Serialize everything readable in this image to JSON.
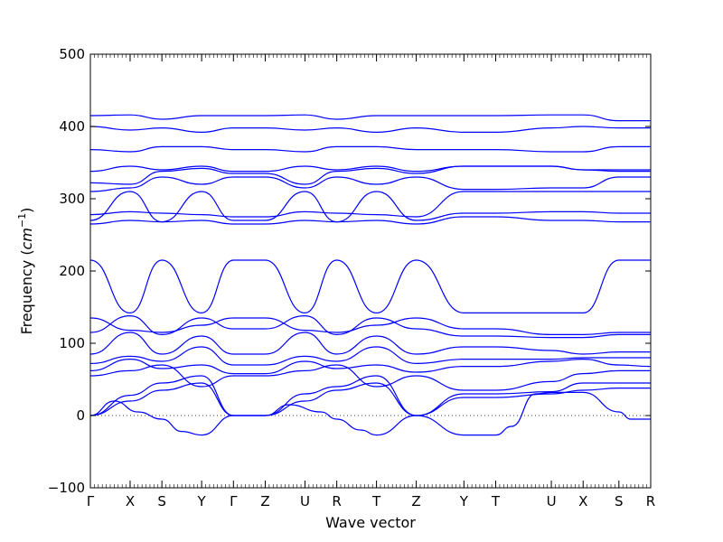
{
  "chart_data": {
    "type": "line",
    "title": "",
    "xlabel": "Wave vector",
    "ylabel_text": "Frequency (",
    "ylabel_unit": "cm",
    "ylabel_exp": "−1",
    "ylabel_close": ")",
    "ylim": [
      -100,
      500
    ],
    "yticks": [
      -100,
      0,
      100,
      200,
      300,
      400,
      500
    ],
    "x_positions": [
      0,
      1,
      1.8,
      2.8,
      3.6,
      4.4,
      5.4,
      6.2,
      7.2,
      8.2,
      9.4,
      10.2,
      11.6,
      12.4,
      13.3,
      14.1
    ],
    "x_tick_labels": [
      "Γ",
      "X",
      "S",
      "Y",
      "Γ",
      "Z",
      "U",
      "R",
      "T",
      "Z",
      "Y",
      "T",
      "U",
      "X",
      "S",
      "R"
    ],
    "series_color": "#0000ff",
    "bands": [
      {
        "x": [
          0,
          1,
          1.8,
          2.8,
          3.6,
          4.4,
          5.4,
          6.2,
          7.2,
          8.2,
          9.4,
          10.2,
          11.6,
          12.4,
          13.3,
          14.1
        ],
        "y": [
          0,
          20,
          35,
          45,
          0,
          0,
          20,
          35,
          45,
          0,
          25,
          25,
          30,
          35,
          38,
          38
        ]
      },
      {
        "x": [
          0,
          1,
          1.8,
          2.8,
          3.6,
          4.4,
          5.4,
          6.2,
          7.2,
          8.2,
          9.4,
          10.2,
          11.6,
          12.4,
          13.3,
          14.1
        ],
        "y": [
          0,
          28,
          45,
          55,
          0,
          0,
          30,
          40,
          55,
          0,
          30,
          30,
          33,
          45,
          45,
          45
        ]
      },
      {
        "x": [
          0,
          0.6,
          1.2,
          1.8,
          2.3,
          2.8,
          3.6,
          4.4,
          5.0,
          5.8,
          6.2,
          6.8,
          7.2,
          8.2,
          9.4,
          10.2,
          10.6,
          11.2,
          11.6,
          12.4,
          13.3,
          13.6,
          14.1
        ],
        "y": [
          0,
          20,
          5,
          -5,
          -22,
          -27,
          0,
          0,
          15,
          5,
          -5,
          -20,
          -27,
          0,
          -27,
          -27,
          -15,
          30,
          32,
          32,
          5,
          -5,
          -5
        ]
      },
      {
        "x": [
          0,
          1,
          1.8,
          2.8,
          3.6,
          4.4,
          5.4,
          6.2,
          7.2,
          8.2,
          9.4,
          10.2,
          11.6,
          12.4,
          13.3,
          14.1
        ],
        "y": [
          55,
          62,
          70,
          40,
          55,
          55,
          62,
          70,
          40,
          55,
          35,
          35,
          47,
          58,
          62,
          62
        ]
      },
      {
        "x": [
          0,
          1,
          1.8,
          2.8,
          3.6,
          4.4,
          5.4,
          6.2,
          7.2,
          8.2,
          9.4,
          10.2,
          11.6,
          12.4,
          13.3,
          14.1
        ],
        "y": [
          62,
          78,
          65,
          70,
          58,
          58,
          75,
          65,
          70,
          60,
          68,
          68,
          75,
          78,
          70,
          68
        ]
      },
      {
        "x": [
          0,
          1,
          1.8,
          2.8,
          3.6,
          4.4,
          5.4,
          6.2,
          7.2,
          8.2,
          9.4,
          10.2,
          11.6,
          12.4,
          13.3,
          14.1
        ],
        "y": [
          72,
          82,
          75,
          95,
          70,
          70,
          82,
          75,
          95,
          72,
          78,
          78,
          78,
          80,
          80,
          80
        ]
      },
      {
        "x": [
          0,
          1,
          1.8,
          2.8,
          3.6,
          4.4,
          5.4,
          6.2,
          7.2,
          8.2,
          9.4,
          10.2,
          11.6,
          12.4,
          13.3,
          14.1
        ],
        "y": [
          85,
          115,
          85,
          110,
          85,
          85,
          115,
          85,
          110,
          85,
          95,
          95,
          90,
          85,
          88,
          88
        ]
      },
      {
        "x": [
          0,
          1,
          1.8,
          2.8,
          3.6,
          4.4,
          5.4,
          6.2,
          7.2,
          8.2,
          9.4,
          10.2,
          11.6,
          12.4,
          13.3,
          14.1
        ],
        "y": [
          115,
          138,
          112,
          135,
          120,
          120,
          138,
          112,
          135,
          120,
          110,
          110,
          108,
          108,
          112,
          112
        ]
      },
      {
        "x": [
          0,
          1,
          1.8,
          2.8,
          3.6,
          4.4,
          5.4,
          6.2,
          7.2,
          8.2,
          9.4,
          10.2,
          11.6,
          12.4,
          13.3,
          14.1
        ],
        "y": [
          135,
          118,
          115,
          125,
          135,
          135,
          118,
          115,
          125,
          135,
          120,
          120,
          112,
          112,
          115,
          115
        ]
      },
      {
        "x": [
          0,
          1,
          1.8,
          2.8,
          3.6,
          4.4,
          5.4,
          6.2,
          7.2,
          8.2,
          9.4,
          10.2,
          11.6,
          12.4,
          13.3,
          14.1
        ],
        "y": [
          215,
          142,
          215,
          142,
          215,
          215,
          142,
          215,
          142,
          215,
          142,
          142,
          142,
          142,
          215,
          215
        ]
      },
      {
        "x": [
          0,
          1,
          1.8,
          2.8,
          3.6,
          4.4,
          5.4,
          6.2,
          7.2,
          8.2,
          9.4,
          10.2,
          11.6,
          12.4,
          13.3,
          14.1
        ],
        "y": [
          265,
          270,
          268,
          270,
          265,
          265,
          270,
          268,
          270,
          265,
          275,
          275,
          270,
          270,
          268,
          268
        ]
      },
      {
        "x": [
          0,
          1,
          1.8,
          2.8,
          3.6,
          4.4,
          5.4,
          6.2,
          7.2,
          8.2,
          9.4,
          10.2,
          11.6,
          12.4,
          13.3,
          14.1
        ],
        "y": [
          270,
          310,
          268,
          310,
          270,
          270,
          310,
          268,
          310,
          270,
          280,
          280,
          282,
          282,
          280,
          280
        ]
      },
      {
        "x": [
          0,
          1,
          1.8,
          2.8,
          3.6,
          4.4,
          5.4,
          6.2,
          7.2,
          8.2,
          9.4,
          10.2,
          11.6,
          12.4,
          13.3,
          14.1
        ],
        "y": [
          278,
          282,
          280,
          278,
          275,
          275,
          282,
          280,
          278,
          275,
          310,
          310,
          310,
          310,
          310,
          310
        ]
      },
      {
        "x": [
          0,
          1,
          1.8,
          2.8,
          3.6,
          4.4,
          5.4,
          6.2,
          7.2,
          8.2,
          9.4,
          10.2,
          11.6,
          12.4,
          13.3,
          14.1
        ],
        "y": [
          310,
          315,
          330,
          320,
          330,
          330,
          315,
          330,
          320,
          330,
          313,
          313,
          315,
          315,
          330,
          330
        ]
      },
      {
        "x": [
          0,
          1,
          1.8,
          2.8,
          3.6,
          4.4,
          5.4,
          6.2,
          7.2,
          8.2,
          9.4,
          10.2,
          11.6,
          12.4,
          13.3,
          14.1
        ],
        "y": [
          322,
          320,
          338,
          342,
          335,
          335,
          320,
          338,
          342,
          335,
          345,
          345,
          345,
          340,
          338,
          338
        ]
      },
      {
        "x": [
          0,
          1,
          1.8,
          2.8,
          3.6,
          4.4,
          5.4,
          6.2,
          7.2,
          8.2,
          9.4,
          10.2,
          11.6,
          12.4,
          13.3,
          14.1
        ],
        "y": [
          338,
          345,
          340,
          345,
          338,
          338,
          345,
          340,
          345,
          338,
          345,
          345,
          345,
          340,
          340,
          340
        ]
      },
      {
        "x": [
          0,
          1,
          1.8,
          2.8,
          3.6,
          4.4,
          5.4,
          6.2,
          7.2,
          8.2,
          9.4,
          10.2,
          11.6,
          12.4,
          13.3,
          14.1
        ],
        "y": [
          368,
          365,
          372,
          372,
          368,
          368,
          365,
          372,
          372,
          368,
          368,
          368,
          365,
          365,
          372,
          372
        ]
      },
      {
        "x": [
          0,
          1,
          1.8,
          2.8,
          3.6,
          4.4,
          5.4,
          6.2,
          7.2,
          8.2,
          9.4,
          10.2,
          11.6,
          12.4,
          13.3,
          14.1
        ],
        "y": [
          400,
          395,
          398,
          392,
          398,
          398,
          395,
          398,
          392,
          398,
          392,
          392,
          398,
          400,
          398,
          398
        ]
      },
      {
        "x": [
          0,
          1,
          1.8,
          2.8,
          3.6,
          4.4,
          5.4,
          6.2,
          7.2,
          8.2,
          9.4,
          10.2,
          11.6,
          12.4,
          13.3,
          14.1
        ],
        "y": [
          415,
          416,
          410,
          415,
          415,
          415,
          416,
          410,
          415,
          415,
          415,
          415,
          416,
          416,
          408,
          408
        ]
      }
    ]
  }
}
